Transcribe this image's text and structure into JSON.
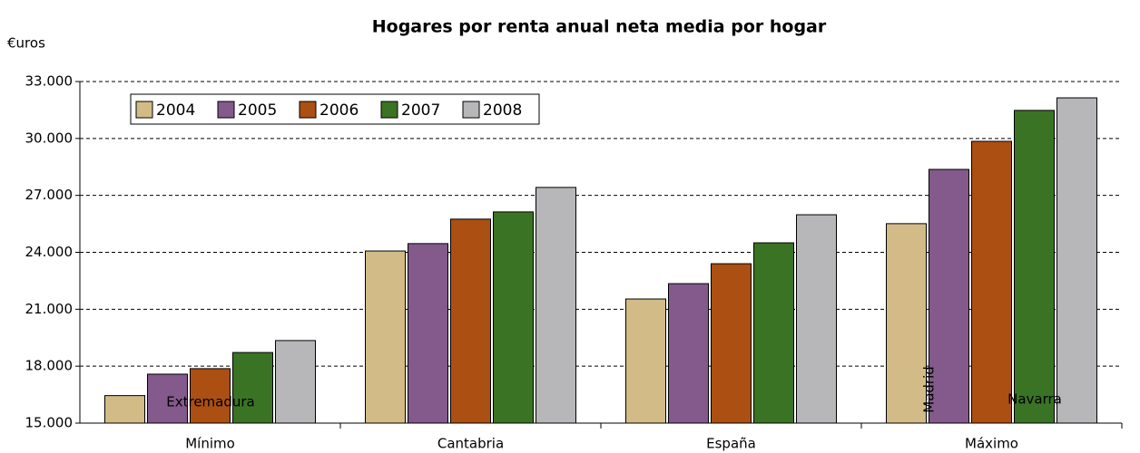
{
  "chart_data": {
    "type": "bar",
    "title": "Hogares por renta anual neta media por hogar",
    "y_label": "€uros",
    "categories": [
      "Mínimo",
      "Cantabria",
      "España",
      "Máximo"
    ],
    "series": [
      {
        "name": "2004",
        "color": "#d2bb86",
        "values": [
          16450,
          24070,
          21540,
          25510
        ]
      },
      {
        "name": "2005",
        "color": "#835a8b",
        "values": [
          17580,
          24460,
          22350,
          28370
        ]
      },
      {
        "name": "2006",
        "color": "#ab4f12",
        "values": [
          17870,
          25750,
          23400,
          29850
        ]
      },
      {
        "name": "2007",
        "color": "#3a7324",
        "values": [
          18720,
          26130,
          24500,
          31480
        ]
      },
      {
        "name": "2008",
        "color": "#b7b7b9",
        "values": [
          19350,
          27420,
          25980,
          32140
        ]
      }
    ],
    "annotations": [
      "Extremadura",
      "Madrid",
      "Navarra"
    ],
    "ylim": [
      15000,
      33000
    ],
    "yticks": [
      {
        "value": 15000,
        "label": "15.000"
      },
      {
        "value": 18000,
        "label": "18.000"
      },
      {
        "value": 21000,
        "label": "21.000"
      },
      {
        "value": 24000,
        "label": "24.000"
      },
      {
        "value": 27000,
        "label": "27.000"
      },
      {
        "value": 30000,
        "label": "30.000"
      },
      {
        "value": 33000,
        "label": "33.000"
      }
    ],
    "grid": true,
    "legend": "upper left"
  }
}
